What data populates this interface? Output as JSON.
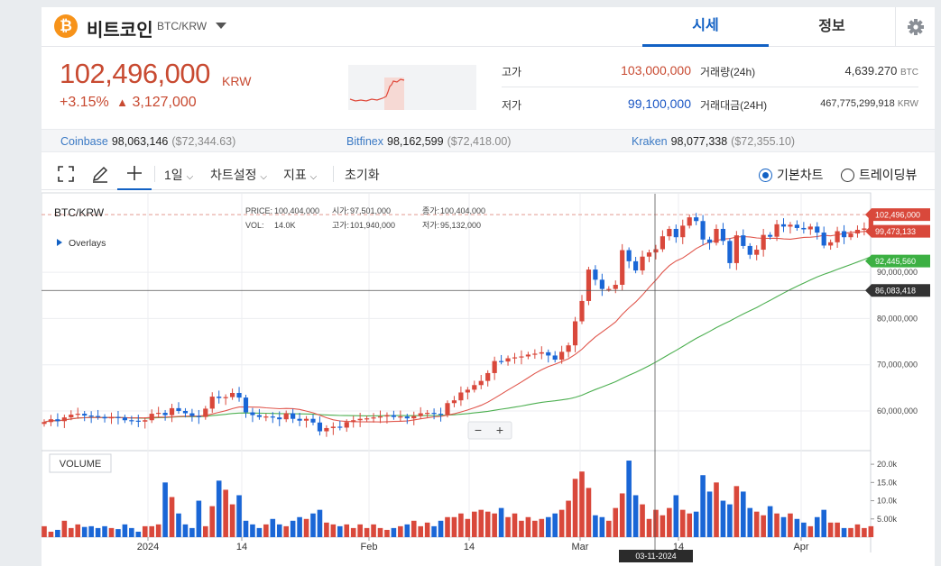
{
  "header": {
    "coin_symbol": "₿",
    "coin_name": "비트코인",
    "pair": "BTC/KRW",
    "tabs": [
      {
        "label": "시세",
        "active": true
      },
      {
        "label": "정보",
        "active": false
      }
    ]
  },
  "price": {
    "current": "102,496,000",
    "unit": "KRW",
    "change_pct": "+3.15%",
    "change_arrow": "▲",
    "change_abs": "3,127,000"
  },
  "stats": {
    "high_label": "고가",
    "high": "103,000,000",
    "low_label": "저가",
    "low": "99,100,000",
    "vol_label": "거래량(24h)",
    "vol": "4,639.270",
    "vol_unit": "BTC",
    "amount_label": "거래대금(24H)",
    "amount": "467,775,299,918",
    "amount_unit": "KRW"
  },
  "exchanges": [
    {
      "name": "Coinbase",
      "price": "98,063,146",
      "usd": "($72,344.63)"
    },
    {
      "name": "Bitfinex",
      "price": "98,162,599",
      "usd": "($72,418.00)"
    },
    {
      "name": "Kraken",
      "price": "98,077,338",
      "usd": "($72,355.10)"
    }
  ],
  "toolbar": {
    "interval": "1일",
    "chart_settings": "차트설정",
    "indicator": "지표",
    "reset": "초기화",
    "basic_chart": "기본차트",
    "tradingview": "트레이딩뷰"
  },
  "chart_data": {
    "type": "candlestick",
    "symbol": "BTC/KRW",
    "overlays_label": "Overlays",
    "ohlc_legend": {
      "price_label": "PRICE:",
      "price": "100,404,000",
      "open_label": "시가:",
      "open": "97,501,000",
      "close_label": "종가:",
      "close": "100,404,000",
      "vol_label": "VOL:",
      "vol": "14.0K",
      "high_label": "고가:",
      "high": "101,940,000",
      "low_label": "저가:",
      "low": "95,132,000"
    },
    "y_ticks": [
      "90,000,000",
      "80,000,000",
      "70,000,000",
      "60,000,000"
    ],
    "y_tick_values": [
      90000000,
      80000000,
      70000000,
      60000000
    ],
    "price_tags": [
      {
        "label": "102,496,000",
        "value": 102496000,
        "color": "#d9483b"
      },
      {
        "label": "99,473,133",
        "value": 99473133,
        "color": "#d9483b"
      },
      {
        "label": "92,445,560",
        "value": 92445560,
        "color": "#3cb043"
      },
      {
        "label": "86,083,418",
        "value": 86083418,
        "color": "#333333"
      }
    ],
    "x_labels": [
      "2024",
      "14",
      "Feb",
      "14",
      "Mar",
      "14",
      "Apr"
    ],
    "crosshair_date": "03-11-2024",
    "volume_label": "VOLUME",
    "volume_ticks": [
      "20.0k",
      "15.0k",
      "10.0k",
      "5.00k"
    ],
    "volume_tick_values": [
      20000,
      15000,
      10000,
      5000
    ],
    "up_color": "#d9483b",
    "down_color": "#1a66d6",
    "ma_colors": [
      "#e0564c",
      "#4caf50"
    ],
    "close": [
      57.6,
      58.2,
      57.8,
      58.6,
      59.2,
      59.4,
      59.0,
      58.9,
      58.7,
      58.4,
      58.7,
      58.6,
      58.0,
      57.9,
      57.7,
      58.0,
      59.4,
      59.6,
      59.1,
      60.6,
      60.0,
      59.5,
      58.9,
      58.7,
      60.5,
      63.1,
      62.8,
      63.0,
      63.9,
      62.9,
      59.7,
      59.1,
      58.7,
      58.8,
      58.6,
      58.2,
      59.5,
      58.3,
      57.9,
      58.3,
      57.5,
      55.6,
      56.3,
      56.6,
      56.4,
      57.6,
      58.0,
      58.3,
      58.4,
      58.6,
      58.8,
      59.1,
      58.7,
      58.8,
      58.4,
      58.9,
      59.5,
      59.6,
      59.4,
      59.2,
      61.7,
      62.3,
      64.0,
      64.6,
      65.6,
      66.5,
      68.2,
      70.8,
      70.7,
      71.4,
      71.6,
      71.8,
      72.2,
      72.4,
      72.7,
      72.0,
      71.1,
      72.8,
      74.2,
      79.4,
      83.8,
      90.6,
      88.4,
      86.4,
      86.4,
      87.3,
      94.8,
      92.4,
      90.4,
      93.4,
      94.3,
      95.0,
      97.8,
      99.4,
      97.6,
      100.1,
      101.9,
      101.1,
      97.1,
      96.4,
      99.4,
      96.8,
      92.0,
      98.0,
      95.7,
      93.8,
      94.9,
      98.1,
      97.7,
      100.4,
      99.9,
      100.3,
      99.6,
      99.3,
      99.9,
      98.6,
      95.8,
      96.5,
      98.9,
      97.6,
      98.4,
      99.2,
      99.5,
      102.5
    ],
    "volume": [
      3.0,
      1.5,
      2.0,
      4.5,
      2.5,
      3.5,
      2.8,
      3.0,
      2.5,
      3.0,
      2.5,
      2.2,
      3.5,
      2.5,
      1.5,
      3.0,
      3.0,
      3.5,
      15.0,
      11.0,
      6.5,
      3.5,
      2.5,
      10.0,
      3.0,
      8.5,
      15.5,
      13.0,
      9.0,
      11.5,
      4.5,
      3.5,
      2.5,
      3.5,
      5.0,
      3.5,
      3.0,
      4.5,
      5.5,
      5.0,
      6.5,
      7.5,
      4.0,
      3.5,
      3.0,
      3.5,
      2.5,
      3.5,
      2.5,
      3.5,
      2.5,
      2.0,
      2.5,
      3.0,
      3.5,
      4.5,
      3.0,
      4.0,
      3.0,
      4.5,
      5.5,
      5.5,
      6.5,
      5.0,
      7.0,
      7.5,
      7.0,
      6.5,
      8.0,
      5.5,
      6.5,
      4.5,
      5.5,
      4.5,
      5.0,
      5.5,
      6.5,
      7.5,
      10.0,
      16.0,
      18.0,
      13.5,
      6.0,
      5.5,
      4.5,
      8.0,
      12.0,
      21.0,
      11.5,
      9.0,
      5.0,
      7.5,
      6.0,
      8.0,
      11.5,
      7.5,
      6.5,
      7.0,
      17.0,
      12.5,
      15.0,
      10.0,
      9.0,
      14.0,
      12.5,
      8.0,
      7.0,
      6.0,
      8.5,
      6.5,
      5.5,
      6.5,
      5.0,
      4.0,
      3.0,
      5.5,
      7.5,
      4.0,
      4.0,
      2.5,
      2.5,
      3.5,
      2.5,
      3.0
    ]
  }
}
